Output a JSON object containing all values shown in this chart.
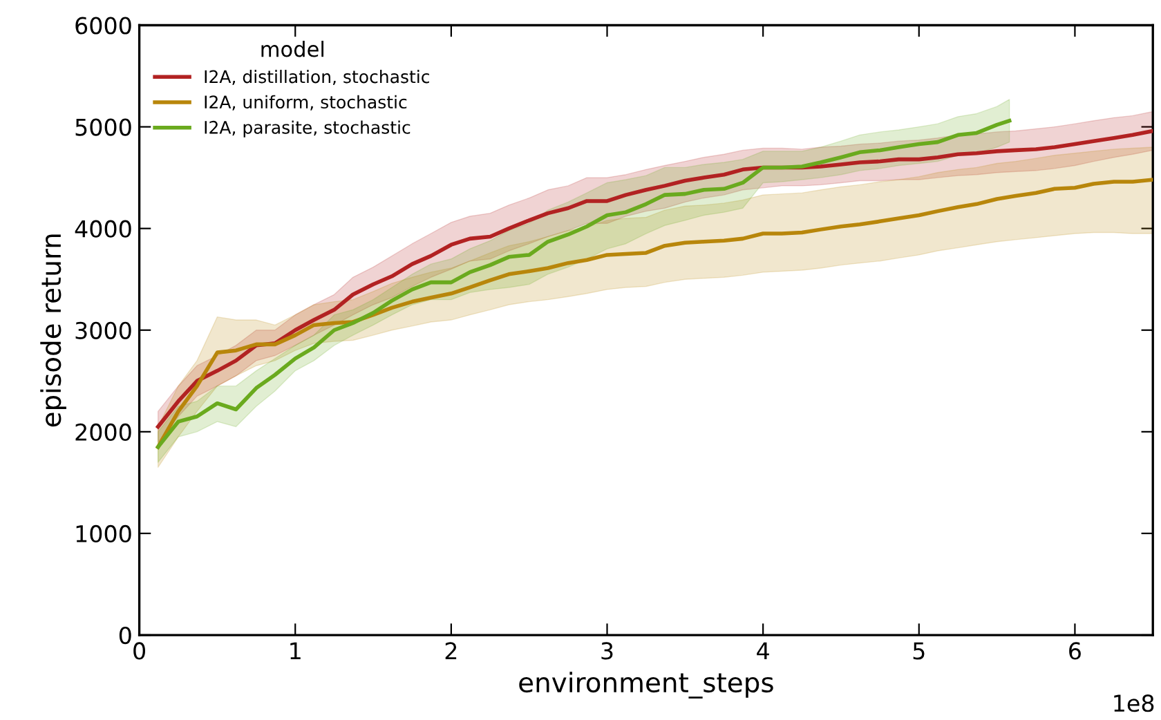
{
  "chart_data": {
    "type": "line",
    "xlabel": "environment_steps",
    "ylabel": "episode return",
    "legend_title": "model",
    "legend": "top left",
    "grid": false,
    "marker": "none",
    "line_style": "solid",
    "xlim": [
      0,
      6.5
    ],
    "ylim": [
      0,
      6000
    ],
    "xticks": [
      0,
      1,
      2,
      3,
      4,
      5,
      6
    ],
    "yticks": [
      0,
      1000,
      2000,
      3000,
      4000,
      5000,
      6000
    ],
    "annotations": [
      "1e8"
    ],
    "series": [
      {
        "name": "I2A, distillation, stochastic",
        "color": "#b22222",
        "x": [
          0.12,
          0.25,
          0.37,
          0.5,
          0.62,
          0.75,
          0.87,
          1.0,
          1.12,
          1.25,
          1.37,
          1.5,
          1.62,
          1.75,
          1.87,
          2.0,
          2.12,
          2.25,
          2.37,
          2.5,
          2.62,
          2.75,
          2.87,
          3.0,
          3.12,
          3.25,
          3.37,
          3.5,
          3.62,
          3.75,
          3.87,
          4.0,
          4.12,
          4.25,
          4.37,
          4.5,
          4.62,
          4.75,
          4.87,
          5.0,
          5.12,
          5.25,
          5.37,
          5.5,
          5.62,
          5.75,
          5.87,
          6.0,
          6.12,
          6.25,
          6.37,
          6.5
        ],
        "values": [
          2050,
          2300,
          2500,
          2600,
          2700,
          2850,
          2870,
          3000,
          3100,
          3200,
          3350,
          3450,
          3530,
          3650,
          3730,
          3840,
          3900,
          3920,
          4000,
          4080,
          4150,
          4200,
          4270,
          4270,
          4330,
          4380,
          4420,
          4470,
          4500,
          4530,
          4580,
          4600,
          4600,
          4600,
          4610,
          4630,
          4650,
          4660,
          4680,
          4680,
          4700,
          4730,
          4740,
          4760,
          4770,
          4780,
          4800,
          4830,
          4860,
          4890,
          4920,
          4960
        ],
        "lower": [
          1900,
          2150,
          2350,
          2450,
          2550,
          2700,
          2750,
          2850,
          2950,
          3050,
          3150,
          3250,
          3320,
          3430,
          3520,
          3600,
          3680,
          3700,
          3780,
          3850,
          3920,
          3980,
          4050,
          4050,
          4120,
          4170,
          4200,
          4260,
          4300,
          4330,
          4380,
          4400,
          4420,
          4420,
          4430,
          4450,
          4470,
          4470,
          4480,
          4480,
          4500,
          4520,
          4530,
          4550,
          4560,
          4570,
          4590,
          4620,
          4660,
          4700,
          4730,
          4770
        ],
        "upper": [
          2200,
          2450,
          2650,
          2750,
          2850,
          3000,
          3000,
          3150,
          3250,
          3350,
          3520,
          3620,
          3730,
          3850,
          3950,
          4060,
          4120,
          4150,
          4230,
          4300,
          4380,
          4420,
          4500,
          4500,
          4530,
          4580,
          4620,
          4660,
          4700,
          4730,
          4770,
          4790,
          4790,
          4780,
          4800,
          4810,
          4830,
          4840,
          4860,
          4870,
          4890,
          4920,
          4930,
          4950,
          4960,
          4980,
          5000,
          5030,
          5060,
          5090,
          5110,
          5150
        ]
      },
      {
        "name": "I2A, uniform, stochastic",
        "color": "#b8860b",
        "x": [
          0.12,
          0.25,
          0.37,
          0.5,
          0.62,
          0.75,
          0.87,
          1.0,
          1.12,
          1.25,
          1.37,
          1.5,
          1.62,
          1.75,
          1.87,
          2.0,
          2.12,
          2.25,
          2.37,
          2.5,
          2.62,
          2.75,
          2.87,
          3.0,
          3.12,
          3.25,
          3.37,
          3.5,
          3.62,
          3.75,
          3.87,
          4.0,
          4.12,
          4.25,
          4.37,
          4.5,
          4.62,
          4.75,
          4.87,
          5.0,
          5.12,
          5.25,
          5.37,
          5.5,
          5.62,
          5.75,
          5.87,
          6.0,
          6.12,
          6.25,
          6.37,
          6.5
        ],
        "values": [
          1850,
          2200,
          2450,
          2780,
          2800,
          2860,
          2860,
          2950,
          3050,
          3070,
          3080,
          3150,
          3220,
          3280,
          3320,
          3360,
          3420,
          3490,
          3550,
          3580,
          3610,
          3660,
          3690,
          3740,
          3750,
          3760,
          3830,
          3860,
          3870,
          3880,
          3900,
          3950,
          3950,
          3960,
          3990,
          4020,
          4040,
          4070,
          4100,
          4130,
          4170,
          4210,
          4240,
          4290,
          4320,
          4350,
          4390,
          4400,
          4440,
          4460,
          4460,
          4480
        ],
        "lower": [
          1650,
          1950,
          2200,
          2450,
          2550,
          2650,
          2700,
          2800,
          2870,
          2890,
          2900,
          2950,
          3000,
          3040,
          3080,
          3100,
          3150,
          3200,
          3250,
          3280,
          3300,
          3330,
          3360,
          3400,
          3420,
          3430,
          3470,
          3500,
          3510,
          3520,
          3540,
          3570,
          3580,
          3590,
          3610,
          3640,
          3660,
          3680,
          3710,
          3740,
          3780,
          3810,
          3840,
          3870,
          3890,
          3910,
          3930,
          3950,
          3960,
          3960,
          3950,
          3950
        ],
        "upper": [
          2050,
          2450,
          2700,
          3130,
          3100,
          3100,
          3050,
          3150,
          3250,
          3280,
          3300,
          3380,
          3460,
          3520,
          3570,
          3610,
          3680,
          3760,
          3830,
          3870,
          3920,
          3980,
          4010,
          4080,
          4100,
          4110,
          4180,
          4220,
          4230,
          4250,
          4280,
          4330,
          4340,
          4350,
          4380,
          4410,
          4430,
          4460,
          4480,
          4510,
          4550,
          4580,
          4600,
          4640,
          4660,
          4690,
          4720,
          4740,
          4760,
          4780,
          4790,
          4800
        ]
      },
      {
        "name": "I2A, parasite, stochastic",
        "color": "#6aaa1e",
        "x": [
          0.12,
          0.25,
          0.37,
          0.5,
          0.62,
          0.75,
          0.87,
          1.0,
          1.12,
          1.25,
          1.37,
          1.5,
          1.62,
          1.75,
          1.87,
          2.0,
          2.12,
          2.25,
          2.37,
          2.5,
          2.62,
          2.75,
          2.87,
          3.0,
          3.12,
          3.25,
          3.37,
          3.5,
          3.62,
          3.75,
          3.87,
          4.0,
          4.12,
          4.25,
          4.37,
          4.5,
          4.62,
          4.75,
          4.87,
          5.0,
          5.12,
          5.25,
          5.37,
          5.5,
          5.58
        ],
        "values": [
          1850,
          2100,
          2150,
          2280,
          2220,
          2430,
          2560,
          2720,
          2830,
          3000,
          3070,
          3170,
          3290,
          3400,
          3470,
          3470,
          3570,
          3640,
          3720,
          3740,
          3870,
          3940,
          4020,
          4130,
          4160,
          4240,
          4330,
          4340,
          4380,
          4390,
          4450,
          4600,
          4600,
          4610,
          4650,
          4700,
          4750,
          4770,
          4800,
          4830,
          4850,
          4920,
          4940,
          5020,
          5060
        ],
        "lower": [
          1700,
          1950,
          2000,
          2100,
          2050,
          2250,
          2400,
          2600,
          2700,
          2850,
          2950,
          3050,
          3150,
          3250,
          3300,
          3300,
          3370,
          3400,
          3420,
          3450,
          3550,
          3620,
          3700,
          3800,
          3850,
          3950,
          4030,
          4080,
          4130,
          4160,
          4200,
          4450,
          4460,
          4480,
          4500,
          4530,
          4570,
          4590,
          4620,
          4640,
          4660,
          4720,
          4740,
          4800,
          4850
        ],
        "upper": [
          2000,
          2250,
          2300,
          2450,
          2450,
          2600,
          2720,
          2850,
          2950,
          3150,
          3200,
          3300,
          3420,
          3550,
          3650,
          3700,
          3800,
          3880,
          3980,
          4050,
          4180,
          4260,
          4350,
          4450,
          4480,
          4520,
          4600,
          4600,
          4630,
          4650,
          4680,
          4760,
          4760,
          4760,
          4800,
          4860,
          4920,
          4950,
          4970,
          5000,
          5030,
          5100,
          5130,
          5200,
          5270
        ]
      }
    ]
  }
}
